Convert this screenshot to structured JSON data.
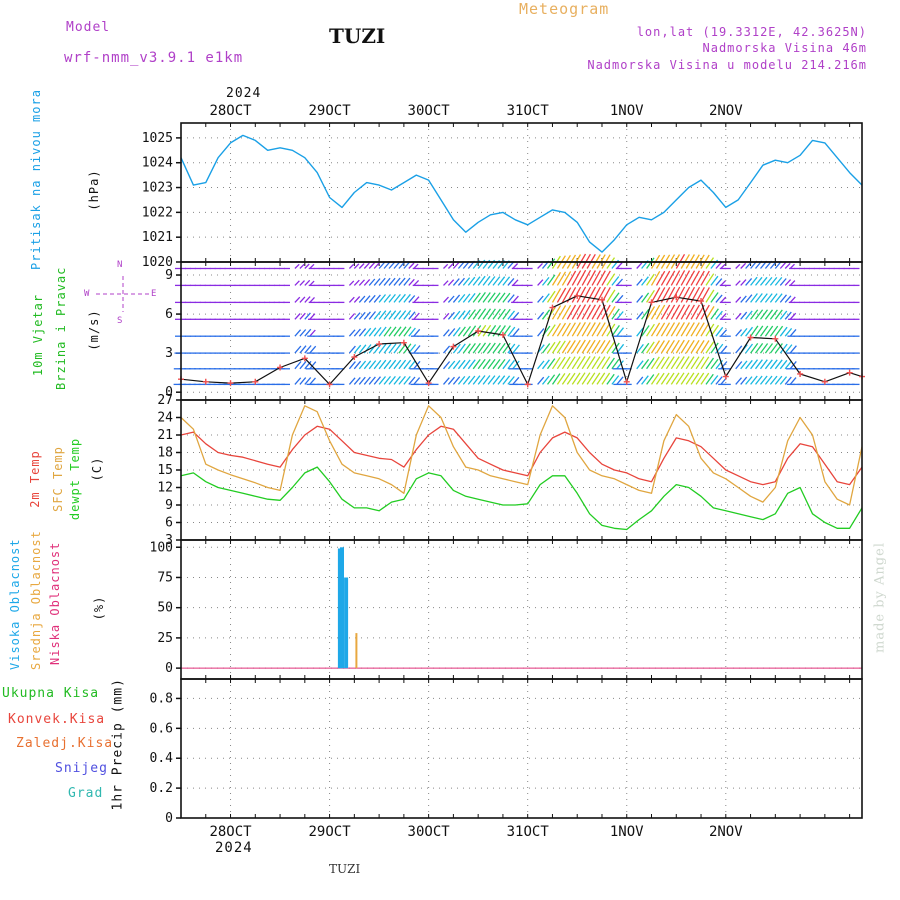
{
  "header": {
    "model_label": "Model",
    "model_name": "wrf-nmm_v3.9.1  e1km",
    "station": "TUZI",
    "meteogram": "Meteogram",
    "lonlat": "lon,lat (19.3312E, 42.3625N)",
    "altitude": "Nadmorska Visina 46m",
    "model_altitude": "Nadmorska Visina u modelu 214.216m",
    "year_top": "2024",
    "year_bottom": "2024",
    "footer_station": "TUZI",
    "watermark": "made by Angel"
  },
  "colors": {
    "pressure": "#1aa0e6",
    "temp2m": "#e8453c",
    "sfc_temp": "#e0a640",
    "dewpt": "#22cc22",
    "high_cloud": "#1ea8e8",
    "mid_cloud": "#e8a840",
    "low_cloud": "#e0307a",
    "purple_text": "#b040c8",
    "orange_text": "#e8b060"
  },
  "panels": {
    "pressure": {
      "label_name": "Pritisak na nivou mora",
      "label_unit": "(hPa)",
      "ticks": [
        "1020",
        "1021",
        "1022",
        "1023",
        "1024",
        "1025"
      ]
    },
    "wind": {
      "label_name": "10m Vjetar",
      "label_sub": "Brzina i Pravac",
      "label_unit": "(m/s)",
      "ticks": [
        "0",
        "3",
        "6",
        "9"
      ],
      "compass_n": "N",
      "compass_w": "W",
      "compass_e": "E",
      "compass_s": "S"
    },
    "temp": {
      "label_2m": "2m Temp",
      "label_sfc": "SFC Temp",
      "label_dew": "dewpt Temp",
      "label_unit": "(C)",
      "ticks": [
        "3",
        "6",
        "9",
        "12",
        "15",
        "18",
        "21",
        "24",
        "27"
      ]
    },
    "cloud": {
      "label_high": "Visoka Oblacnost",
      "label_mid": "Srednja Oblacnost",
      "label_low": "Niska Oblacnost",
      "label_unit": "(%)",
      "ticks": [
        "0",
        "25",
        "50",
        "75",
        "100"
      ]
    },
    "precip": {
      "label_total": "Ukupna Kisa",
      "label_conv": "Konvek.Kisa",
      "label_frz": "Zaledj.Kisa",
      "label_snow": "Snijeg",
      "label_hail": "Grad",
      "label_axis": "1hr Precip (mm)",
      "ticks": [
        "0",
        "0.2",
        "0.4",
        "0.6",
        "0.8"
      ]
    }
  },
  "date_ticks": [
    "28OCT",
    "29OCT",
    "30OCT",
    "31OCT",
    "1NOV",
    "2NOV"
  ],
  "chart_data": [
    {
      "type": "line",
      "panel": "pressure",
      "x_unit": "hours from 27 OCT 2024 12:00",
      "x": [
        0,
        3,
        6,
        9,
        12,
        15,
        18,
        21,
        24,
        27,
        30,
        33,
        36,
        39,
        42,
        45,
        48,
        51,
        54,
        57,
        60,
        63,
        66,
        69,
        72,
        75,
        78,
        81,
        84,
        87,
        90,
        93,
        96,
        99,
        102,
        105,
        108,
        111,
        114,
        117,
        120,
        123,
        126,
        129,
        132,
        135,
        138,
        141,
        144,
        147,
        150,
        153,
        156,
        159,
        162,
        165
      ],
      "series": [
        {
          "values": [
            1024.2,
            1023.1,
            1023.2,
            1024.2,
            1024.8,
            1025.1,
            1024.9,
            1024.5,
            1024.6,
            1024.5,
            1024.2,
            1023.6,
            1022.6,
            1022.2,
            1022.8,
            1023.2,
            1023.1,
            1022.9,
            1023.2,
            1023.5,
            1023.3,
            1022.5,
            1021.7,
            1021.2,
            1021.6,
            1021.9,
            1022.0,
            1021.7,
            1021.5,
            1021.8,
            1022.1,
            1022.0,
            1021.6,
            1020.8,
            1020.4,
            1020.9,
            1021.5,
            1021.8,
            1021.7,
            1022.0,
            1022.5,
            1023.0,
            1023.3,
            1022.8,
            1022.2,
            1022.5,
            1023.2,
            1023.9,
            1024.1,
            1024.0,
            1024.3,
            1024.9,
            1024.8,
            1024.2,
            1023.6,
            1023.1
          ]
        }
      ],
      "ylabel": "(hPa)",
      "ylim": [
        1020,
        1025.6
      ]
    },
    {
      "type": "line",
      "panel": "wind",
      "x": [
        0,
        6,
        12,
        18,
        24,
        30,
        36,
        42,
        48,
        54,
        60,
        66,
        72,
        78,
        84,
        90,
        96,
        102,
        108,
        114,
        120,
        126,
        132,
        138,
        144,
        150,
        156,
        162,
        165
      ],
      "series": [
        {
          "values": [
            1.0,
            0.8,
            0.7,
            0.8,
            1.9,
            2.6,
            0.6,
            2.7,
            3.7,
            3.8,
            0.7,
            3.5,
            4.7,
            4.4,
            0.6,
            6.5,
            7.4,
            7.1,
            0.8,
            6.9,
            7.3,
            7.0,
            1.2,
            4.2,
            4.1,
            1.4,
            0.8,
            1.5,
            1.2
          ]
        }
      ],
      "ylabel": "(m/s)",
      "ylim": [
        0,
        10
      ]
    },
    {
      "type": "line",
      "panel": "temp",
      "x": [
        0,
        3,
        6,
        9,
        12,
        15,
        18,
        21,
        24,
        27,
        30,
        33,
        36,
        39,
        42,
        45,
        48,
        51,
        54,
        57,
        60,
        63,
        66,
        69,
        72,
        75,
        78,
        81,
        84,
        87,
        90,
        93,
        96,
        99,
        102,
        105,
        108,
        111,
        114,
        117,
        120,
        123,
        126,
        129,
        132,
        135,
        138,
        141,
        144,
        147,
        150,
        153,
        156,
        159,
        162,
        165
      ],
      "series": [
        {
          "name": "2m Temp",
          "values": [
            21.0,
            21.5,
            19.5,
            18.0,
            17.5,
            17.2,
            16.6,
            16.0,
            15.5,
            18.5,
            21.0,
            22.5,
            22.0,
            20.0,
            18.0,
            17.5,
            17.0,
            16.8,
            15.5,
            18.5,
            21.0,
            22.5,
            22.0,
            19.5,
            17.0,
            16.0,
            15.0,
            14.5,
            14.0,
            18.0,
            20.5,
            21.5,
            20.5,
            18.0,
            16.0,
            15.0,
            14.5,
            13.5,
            13.0,
            17.0,
            20.5,
            20.0,
            19.0,
            17.0,
            15.0,
            14.0,
            13.0,
            12.5,
            13.0,
            17.0,
            19.5,
            19.0,
            16.0,
            13.0,
            12.5,
            15.5
          ]
        },
        {
          "name": "SFC Temp",
          "values": [
            24.0,
            22.0,
            16.0,
            15.0,
            14.2,
            13.5,
            12.8,
            12.0,
            11.5,
            21.0,
            26.0,
            25.0,
            20.0,
            16.0,
            14.5,
            14.0,
            13.5,
            12.5,
            11.0,
            21.0,
            26.0,
            24.0,
            19.0,
            15.5,
            15.0,
            14.0,
            13.5,
            13.0,
            12.5,
            21.0,
            26.0,
            24.0,
            18.0,
            15.0,
            14.0,
            13.5,
            12.5,
            11.5,
            11.0,
            20.0,
            24.5,
            22.5,
            17.0,
            14.5,
            13.5,
            12.0,
            10.5,
            9.5,
            12.0,
            20.0,
            24.0,
            21.0,
            13.0,
            10.0,
            9.0,
            19.0
          ]
        },
        {
          "name": "dewpt Temp",
          "values": [
            14.0,
            14.5,
            13.0,
            12.0,
            11.5,
            11.0,
            10.5,
            10.0,
            9.8,
            12.0,
            14.5,
            15.5,
            13.0,
            10.0,
            8.5,
            8.5,
            8.0,
            9.5,
            10.0,
            13.5,
            14.5,
            14.0,
            11.5,
            10.5,
            10.0,
            9.5,
            9.0,
            9.0,
            9.2,
            12.5,
            14.0,
            14.0,
            11.0,
            7.5,
            5.5,
            5.0,
            4.8,
            6.5,
            8.0,
            10.5,
            12.5,
            12.0,
            10.5,
            8.5,
            8.0,
            7.5,
            7.0,
            6.5,
            7.5,
            11.0,
            12.0,
            7.5,
            6.0,
            5.0,
            5.0,
            8.5
          ]
        }
      ],
      "ylabel": "(C)",
      "ylim": [
        3,
        27
      ]
    },
    {
      "type": "bar",
      "panel": "cloud",
      "series": [
        {
          "name": "Visoka Oblacnost",
          "x": [
            38.5,
            39.0,
            40.0
          ],
          "values": [
            99,
            100,
            75
          ]
        },
        {
          "name": "Srednja Oblacnost",
          "x": [
            42.5
          ],
          "values": [
            29
          ]
        }
      ],
      "ylabel": "(%)",
      "ylim": [
        0,
        100
      ]
    },
    {
      "type": "line",
      "panel": "precip",
      "series": [],
      "ylabel": "1hr Precip (mm)",
      "ylim": [
        0,
        0.9
      ]
    }
  ]
}
